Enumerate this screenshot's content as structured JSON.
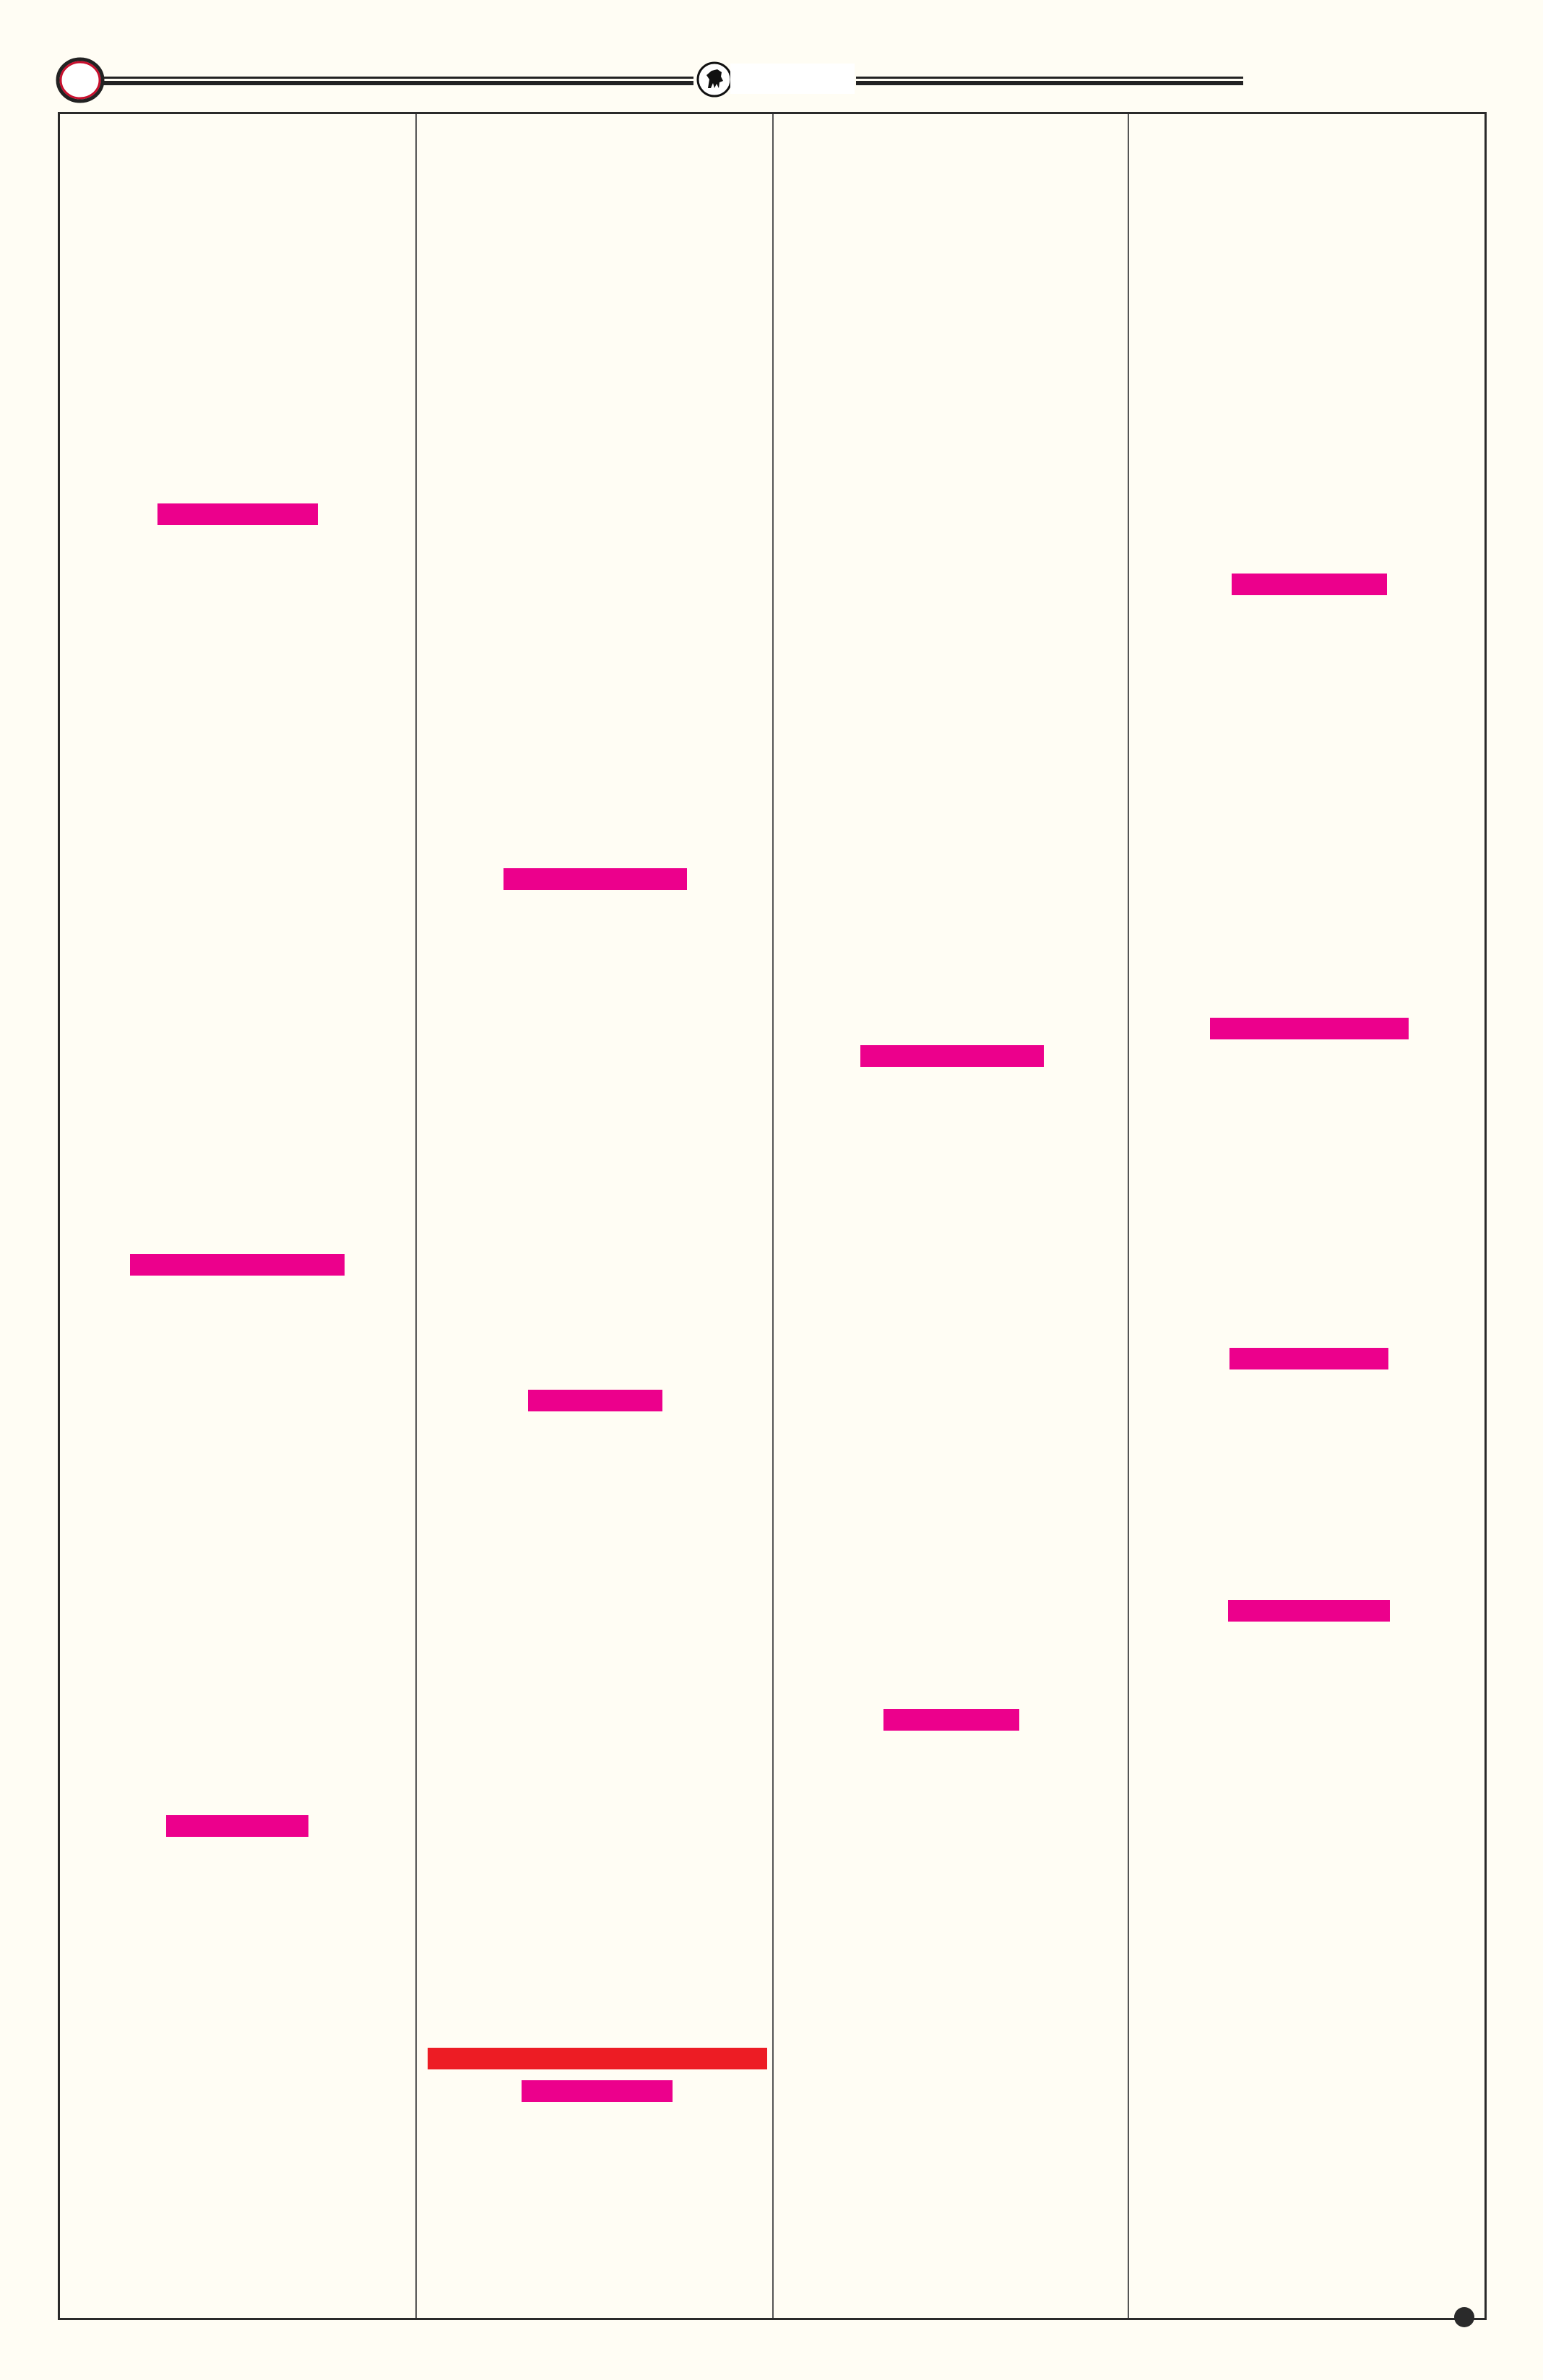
{
  "colors": {
    "background": "#fffdf4",
    "rule": "#222222",
    "label_bar": "#ec008c",
    "alert_bar": "#ed1c24",
    "ring": "#c8102e"
  },
  "header": {
    "left_icon": "ring-icon",
    "center_icon": "emblem-icon"
  },
  "columns": [
    {
      "bars": [
        "label",
        "label",
        "label"
      ]
    },
    {
      "bars": [
        "label",
        "label",
        "alert",
        "label"
      ]
    },
    {
      "bars": [
        "label",
        "label"
      ]
    },
    {
      "bars": [
        "label",
        "label",
        "label",
        "label"
      ]
    }
  ],
  "footer": {
    "icon": "dot-icon"
  }
}
